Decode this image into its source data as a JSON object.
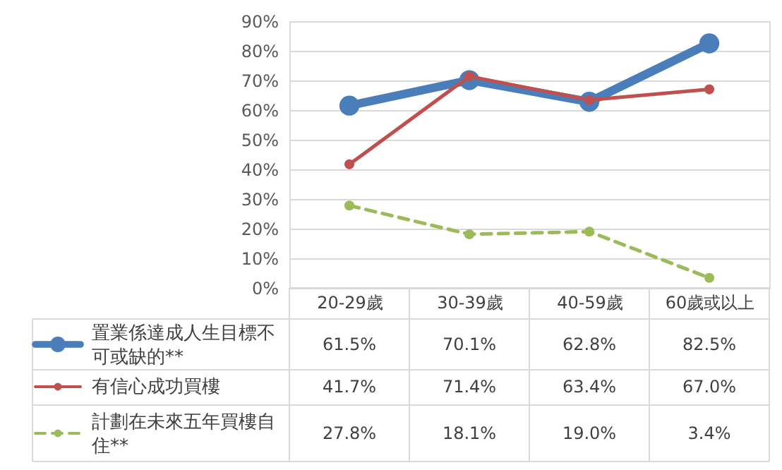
{
  "chart_data": {
    "type": "line",
    "categories": [
      "20-29歲",
      "30-39歲",
      "40-59歲",
      "60歲或以上"
    ],
    "series": [
      {
        "name": "置業係達成人生目標不可或缺的**",
        "color": "#4a7ebb",
        "values": [
          61.5,
          70.1,
          62.8,
          82.5
        ],
        "value_labels": [
          "61.5%",
          "70.1%",
          "62.8%",
          "82.5%"
        ],
        "line_style": "solid",
        "marker": "circle"
      },
      {
        "name": "有信心成功買樓",
        "color": "#c0504d",
        "values": [
          41.7,
          71.4,
          63.4,
          67.0
        ],
        "value_labels": [
          "41.7%",
          "71.4%",
          "63.4%",
          "67.0%"
        ],
        "line_style": "solid",
        "marker": "circle"
      },
      {
        "name": "計劃在未來五年買樓自住**",
        "color": "#9bbb59",
        "values": [
          27.8,
          18.1,
          19.0,
          3.4
        ],
        "value_labels": [
          "27.8%",
          "18.1%",
          "19.0%",
          "3.4%"
        ],
        "line_style": "dashed",
        "marker": "circle"
      }
    ],
    "ylim": [
      0,
      90
    ],
    "yticks": [
      {
        "value": 0,
        "label": "0%"
      },
      {
        "value": 10,
        "label": "10%"
      },
      {
        "value": 20,
        "label": "20%"
      },
      {
        "value": 30,
        "label": "30%"
      },
      {
        "value": 40,
        "label": "40%"
      },
      {
        "value": 50,
        "label": "50%"
      },
      {
        "value": 60,
        "label": "60%"
      },
      {
        "value": 70,
        "label": "70%"
      },
      {
        "value": 80,
        "label": "80%"
      },
      {
        "value": 90,
        "label": "90%"
      }
    ],
    "grid": "y",
    "legend": "bottom"
  }
}
